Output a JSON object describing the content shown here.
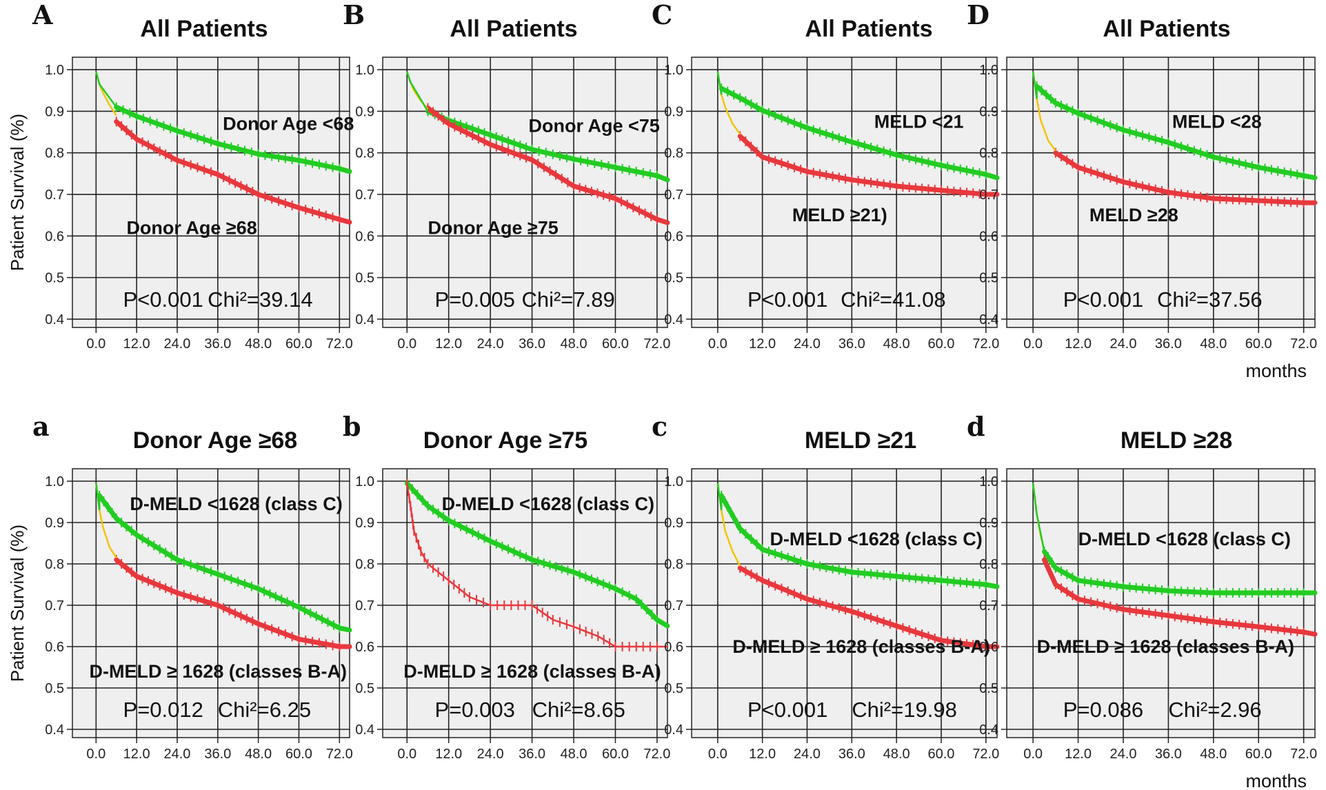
{
  "figure": {
    "y_axis_label": "Patient  Survival (%)",
    "x_unit_label": "months",
    "colors": {
      "green": "#22cc22",
      "red": "#e8383d",
      "yellow": "#f2c400",
      "plot_bg": "#efefef",
      "grid": "#222222"
    }
  },
  "chart_data": [
    {
      "id": "A",
      "type": "line",
      "title": "All Patients",
      "ylabel": "Patient  Survival (%)",
      "xlabel": "",
      "xlim": [
        -7,
        75
      ],
      "ylim": [
        0.38,
        1.03
      ],
      "x_ticks": [
        "0.0",
        "12.0",
        "24.0",
        "36.0",
        "48.0",
        "60.0",
        "72.0"
      ],
      "y_ticks": [
        "0.4",
        "0.5",
        "0.6",
        "0.7",
        "0.8",
        "0.9",
        "1.0"
      ],
      "grid": true,
      "stat_p": "P<0.001",
      "stat_chi": "Chi²=39.14",
      "series": [
        {
          "name": "Donor Age <68",
          "color": "green",
          "label_x": 37.5,
          "label_y": 0.855,
          "points": [
            [
              6,
              0.91
            ],
            [
              12,
              0.888
            ],
            [
              24,
              0.853
            ],
            [
              36,
              0.822
            ],
            [
              48,
              0.797
            ],
            [
              60,
              0.782
            ],
            [
              72,
              0.762
            ],
            [
              75,
              0.755
            ]
          ]
        },
        {
          "name": "Donor Age ≥68",
          "color": "red",
          "label_x": 9,
          "label_y": 0.605,
          "points": [
            [
              6,
              0.875
            ],
            [
              12,
              0.833
            ],
            [
              24,
              0.782
            ],
            [
              36,
              0.748
            ],
            [
              48,
              0.7
            ],
            [
              60,
              0.668
            ],
            [
              72,
              0.64
            ],
            [
              75,
              0.633
            ]
          ]
        }
      ],
      "early": [
        [
          0,
          0.995
        ],
        [
          1,
          0.965
        ],
        [
          2,
          0.945
        ],
        [
          4,
          0.915
        ],
        [
          6,
          0.89
        ]
      ]
    },
    {
      "id": "B",
      "type": "line",
      "title": "All Patients",
      "ylabel": "",
      "xlabel": "",
      "xlim": [
        -7,
        75
      ],
      "ylim": [
        0.38,
        1.03
      ],
      "x_ticks": [
        "0.0",
        "12.0",
        "24.0",
        "36.0",
        "48.0",
        "60.0",
        "72.0"
      ],
      "y_ticks": [
        "0.4",
        "0.5",
        "0.6",
        "0.7",
        "0.8",
        "0.9",
        "1.0"
      ],
      "grid": true,
      "stat_p": "P=0.005",
      "stat_chi": "Chi²=7.89",
      "series": [
        {
          "name": "Donor Age <75",
          "color": "green",
          "label_x": 35,
          "label_y": 0.85,
          "points": [
            [
              6,
              0.9
            ],
            [
              12,
              0.878
            ],
            [
              24,
              0.843
            ],
            [
              36,
              0.808
            ],
            [
              48,
              0.785
            ],
            [
              60,
              0.765
            ],
            [
              72,
              0.745
            ],
            [
              75,
              0.735
            ]
          ]
        },
        {
          "name": "Donor Age ≥75",
          "color": "red",
          "label_x": 6,
          "label_y": 0.605,
          "points": [
            [
              6,
              0.908
            ],
            [
              12,
              0.87
            ],
            [
              24,
              0.82
            ],
            [
              36,
              0.783
            ],
            [
              48,
              0.72
            ],
            [
              60,
              0.69
            ],
            [
              72,
              0.64
            ],
            [
              75,
              0.632
            ]
          ]
        }
      ],
      "early": [
        [
          0,
          0.995
        ],
        [
          1,
          0.97
        ],
        [
          2,
          0.95
        ],
        [
          4,
          0.925
        ],
        [
          6,
          0.905
        ]
      ]
    },
    {
      "id": "C",
      "type": "line",
      "title": "All Patients",
      "ylabel": "",
      "xlabel": "",
      "xlim": [
        -7,
        75
      ],
      "ylim": [
        0.38,
        1.03
      ],
      "x_ticks": [
        "0.0",
        "12.0",
        "24.0",
        "36.0",
        "48.0",
        "60.0",
        "72.0"
      ],
      "y_ticks": [
        "0.4",
        "0.5",
        "0.6",
        "0.7",
        "0.8",
        "0.9",
        "1.0"
      ],
      "grid": true,
      "stat_p": "P<0.001",
      "stat_chi": "Chi²=41.08",
      "series": [
        {
          "name": "MELD <21",
          "color": "green",
          "label_x": 42,
          "label_y": 0.86,
          "points": [
            [
              1,
              0.955
            ],
            [
              6,
              0.932
            ],
            [
              12,
              0.902
            ],
            [
              24,
              0.86
            ],
            [
              36,
              0.826
            ],
            [
              48,
              0.795
            ],
            [
              60,
              0.77
            ],
            [
              72,
              0.748
            ],
            [
              75,
              0.74
            ]
          ]
        },
        {
          "name": "MELD ≥21)",
          "color": "red",
          "label_x": 20,
          "label_y": 0.635,
          "points": [
            [
              6,
              0.84
            ],
            [
              12,
              0.79
            ],
            [
              24,
              0.755
            ],
            [
              36,
              0.735
            ],
            [
              48,
              0.72
            ],
            [
              60,
              0.71
            ],
            [
              72,
              0.7
            ],
            [
              75,
              0.7
            ]
          ]
        }
      ],
      "early": [
        [
          0,
          0.995
        ],
        [
          1,
          0.94
        ],
        [
          2,
          0.91
        ],
        [
          4,
          0.87
        ],
        [
          6,
          0.845
        ]
      ]
    },
    {
      "id": "D",
      "type": "line",
      "title": "All Patients",
      "ylabel": "",
      "xlabel": "months",
      "xlim": [
        -7,
        75
      ],
      "ylim": [
        0.38,
        1.03
      ],
      "x_ticks": [
        "0.0",
        "12.0",
        "24.0",
        "36.0",
        "48.0",
        "60.0",
        "72.0"
      ],
      "y_ticks": [
        "0.4",
        "0.5",
        "0.6",
        "0.7",
        "0.8",
        "0.9",
        "1.0"
      ],
      "grid": true,
      "stat_p": "P<0.001",
      "stat_chi": "Chi²=37.56",
      "series": [
        {
          "name": "MELD <28",
          "color": "green",
          "label_x": 37,
          "label_y": 0.86,
          "points": [
            [
              1,
              0.96
            ],
            [
              6,
              0.92
            ],
            [
              12,
              0.895
            ],
            [
              24,
              0.855
            ],
            [
              36,
              0.825
            ],
            [
              48,
              0.79
            ],
            [
              60,
              0.765
            ],
            [
              72,
              0.745
            ],
            [
              75,
              0.74
            ]
          ]
        },
        {
          "name": "MELD ≥28",
          "color": "red",
          "label_x": 15,
          "label_y": 0.635,
          "points": [
            [
              6,
              0.8
            ],
            [
              12,
              0.765
            ],
            [
              24,
              0.73
            ],
            [
              36,
              0.705
            ],
            [
              48,
              0.69
            ],
            [
              60,
              0.685
            ],
            [
              72,
              0.68
            ],
            [
              75,
              0.68
            ]
          ]
        }
      ],
      "early": [
        [
          0,
          0.995
        ],
        [
          1,
          0.93
        ],
        [
          2,
          0.88
        ],
        [
          4,
          0.83
        ],
        [
          6,
          0.805
        ]
      ]
    },
    {
      "id": "a",
      "type": "line",
      "title": "Donor Age ≥68",
      "ylabel": "Patient  Survival (%)",
      "xlabel": "",
      "xlim": [
        -7,
        75
      ],
      "ylim": [
        0.38,
        1.03
      ],
      "x_ticks": [
        "0.0",
        "12.0",
        "24.0",
        "36.0",
        "48.0",
        "60.0",
        "72.0"
      ],
      "y_ticks": [
        "0.4",
        "0.5",
        "0.6",
        "0.7",
        "0.8",
        "0.9",
        "1.0"
      ],
      "grid": true,
      "stat_p": "P=0.012",
      "stat_chi": "Chi²=6.25",
      "series": [
        {
          "name": "D-MELD <1628 (class C)",
          "color": "green",
          "label_x": 10,
          "label_y": 0.93,
          "points": [
            [
              1,
              0.965
            ],
            [
              6,
              0.91
            ],
            [
              12,
              0.87
            ],
            [
              24,
              0.81
            ],
            [
              36,
              0.775
            ],
            [
              48,
              0.74
            ],
            [
              60,
              0.695
            ],
            [
              72,
              0.645
            ],
            [
              75,
              0.64
            ]
          ]
        },
        {
          "name": "D-MELD ≥ 1628 (classes B-A)",
          "color": "red",
          "label_x": -2,
          "label_y": 0.525,
          "points": [
            [
              6,
              0.81
            ],
            [
              12,
              0.77
            ],
            [
              24,
              0.73
            ],
            [
              36,
              0.7
            ],
            [
              48,
              0.655
            ],
            [
              60,
              0.618
            ],
            [
              72,
              0.6
            ],
            [
              75,
              0.6
            ]
          ]
        }
      ],
      "early": [
        [
          0,
          0.995
        ],
        [
          1,
          0.93
        ],
        [
          2,
          0.89
        ],
        [
          4,
          0.84
        ],
        [
          6,
          0.815
        ]
      ]
    },
    {
      "id": "b",
      "type": "line",
      "title": "Donor Age ≥75",
      "ylabel": "",
      "xlabel": "",
      "xlim": [
        -7,
        75
      ],
      "ylim": [
        0.38,
        1.03
      ],
      "x_ticks": [
        "0.0",
        "12.0",
        "24.0",
        "36.0",
        "48.0",
        "60.0",
        "72.0"
      ],
      "y_ticks": [
        "0.4",
        "0.5",
        "0.6",
        "0.7",
        "0.8",
        "0.9",
        "1.0"
      ],
      "grid": true,
      "stat_p": "P=0.003",
      "stat_chi": "Chi²=8.65",
      "series": [
        {
          "name": "D-MELD <1628 (class C)",
          "color": "green",
          "label_x": 10,
          "label_y": 0.93,
          "points": [
            [
              0,
              0.995
            ],
            [
              6,
              0.94
            ],
            [
              12,
              0.905
            ],
            [
              24,
              0.855
            ],
            [
              36,
              0.81
            ],
            [
              48,
              0.78
            ],
            [
              60,
              0.74
            ],
            [
              66,
              0.715
            ],
            [
              72,
              0.665
            ],
            [
              75,
              0.65
            ]
          ]
        },
        {
          "name": "D-MELD ≥ 1628 (classes B-A)",
          "color": "red",
          "label_x": -1,
          "label_y": 0.525,
          "points": [
            [
              0,
              0.995
            ],
            [
              1,
              0.94
            ],
            [
              2,
              0.88
            ],
            [
              4,
              0.83
            ],
            [
              6,
              0.8
            ],
            [
              12,
              0.76
            ],
            [
              18,
              0.72
            ],
            [
              24,
              0.7
            ],
            [
              36,
              0.7
            ],
            [
              42,
              0.665
            ],
            [
              48,
              0.648
            ],
            [
              55,
              0.625
            ],
            [
              60,
              0.6
            ],
            [
              72,
              0.6
            ],
            [
              75,
              0.6
            ]
          ]
        }
      ],
      "early": []
    },
    {
      "id": "c",
      "type": "line",
      "title": "MELD ≥21",
      "ylabel": "",
      "xlabel": "",
      "xlim": [
        -7,
        75
      ],
      "ylim": [
        0.38,
        1.03
      ],
      "x_ticks": [
        "0.0",
        "12.0",
        "24.0",
        "36.0",
        "48.0",
        "60.0",
        "72.0"
      ],
      "y_ticks": [
        "0.4",
        "0.5",
        "0.6",
        "0.7",
        "0.8",
        "0.9",
        "1.0"
      ],
      "grid": true,
      "stat_p": "P<0.001",
      "stat_chi": "Chi²=19.98",
      "series": [
        {
          "name": "D-MELD <1628 (class C)",
          "color": "green",
          "label_x": 14,
          "label_y": 0.845,
          "points": [
            [
              1,
              0.965
            ],
            [
              6,
              0.885
            ],
            [
              12,
              0.835
            ],
            [
              24,
              0.8
            ],
            [
              36,
              0.78
            ],
            [
              48,
              0.77
            ],
            [
              60,
              0.76
            ],
            [
              72,
              0.75
            ],
            [
              75,
              0.745
            ]
          ]
        },
        {
          "name": "D-MELD ≥ 1628 (classes B-A)",
          "color": "red",
          "label_x": 4,
          "label_y": 0.585,
          "points": [
            [
              6,
              0.79
            ],
            [
              12,
              0.76
            ],
            [
              24,
              0.715
            ],
            [
              36,
              0.685
            ],
            [
              48,
              0.65
            ],
            [
              60,
              0.615
            ],
            [
              72,
              0.6
            ],
            [
              75,
              0.6
            ]
          ]
        }
      ],
      "early": [
        [
          0,
          0.995
        ],
        [
          1,
          0.93
        ],
        [
          2,
          0.88
        ],
        [
          4,
          0.83
        ],
        [
          6,
          0.795
        ]
      ]
    },
    {
      "id": "d",
      "type": "line",
      "title": "MELD ≥28",
      "ylabel": "",
      "xlabel": "months",
      "xlim": [
        -7,
        75
      ],
      "ylim": [
        0.38,
        1.03
      ],
      "x_ticks": [
        "0.0",
        "12.0",
        "24.0",
        "36.0",
        "48.0",
        "60.0",
        "72.0"
      ],
      "y_ticks": [
        "0.4",
        "0.5",
        "0.6",
        "0.7",
        "0.8",
        "0.9",
        "1.0"
      ],
      "grid": true,
      "stat_p": "P=0.086",
      "stat_chi": "Chi²=2.96",
      "series": [
        {
          "name": "D-MELD <1628 (class C)",
          "color": "green",
          "label_x": 12,
          "label_y": 0.845,
          "points": [
            [
              3,
              0.83
            ],
            [
              6,
              0.79
            ],
            [
              12,
              0.76
            ],
            [
              24,
              0.745
            ],
            [
              36,
              0.735
            ],
            [
              48,
              0.73
            ],
            [
              60,
              0.73
            ],
            [
              72,
              0.73
            ],
            [
              75,
              0.73
            ]
          ]
        },
        {
          "name": "D-MELD ≥ 1628 (classes B-A)",
          "color": "red",
          "label_x": 1,
          "label_y": 0.585,
          "points": [
            [
              3,
              0.81
            ],
            [
              6,
              0.75
            ],
            [
              12,
              0.715
            ],
            [
              24,
              0.69
            ],
            [
              36,
              0.675
            ],
            [
              48,
              0.66
            ],
            [
              60,
              0.648
            ],
            [
              72,
              0.635
            ],
            [
              75,
              0.63
            ]
          ]
        }
      ],
      "early": [
        [
          0,
          0.995
        ],
        [
          1,
          0.92
        ],
        [
          2,
          0.87
        ],
        [
          3,
          0.83
        ]
      ]
    }
  ]
}
